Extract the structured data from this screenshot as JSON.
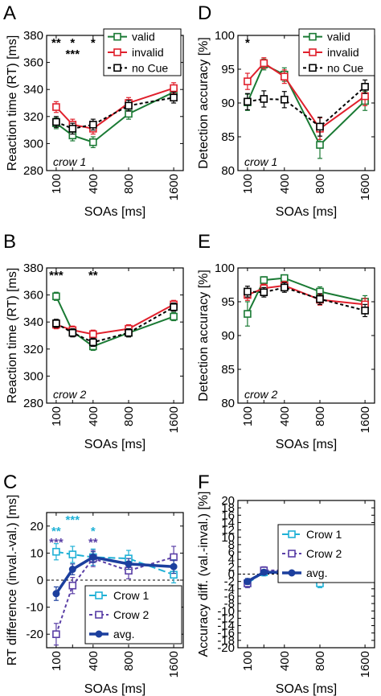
{
  "colors": {
    "valid": "#1a7a34",
    "invalid": "#e0202c",
    "nocue": "#000000",
    "crow1": "#1fb1d6",
    "crow2": "#5a3fa6",
    "avg": "#1c3f9e"
  },
  "chart_data": [
    {
      "id": "A",
      "panel_label": "A",
      "type": "line",
      "x": [
        100,
        200,
        400,
        800,
        1600
      ],
      "xticks": [
        "100",
        "400",
        "800",
        "1600"
      ],
      "xtick_values": [
        100,
        400,
        800,
        1600
      ],
      "xlabel": "SOAs [ms]",
      "ylabel": "Reaction time (RT) [ms]",
      "ylim": [
        280,
        380
      ],
      "yticks": [
        280,
        300,
        320,
        340,
        360,
        380
      ],
      "annotation": "crow 1",
      "stars": [
        {
          "x": 100,
          "row": 0,
          "text": "**",
          "color": "#000000"
        },
        {
          "x": 200,
          "row": 0,
          "text": "*",
          "color": "#000000"
        },
        {
          "x": 200,
          "row": 1,
          "text": "***",
          "color": "#000000"
        },
        {
          "x": 400,
          "row": 0,
          "text": "*",
          "color": "#000000"
        }
      ],
      "legend": {
        "position": "top-right",
        "entries": [
          "valid",
          "invalid",
          "no Cue"
        ]
      },
      "series": [
        {
          "name": "valid",
          "key": "valid",
          "dash": "solid",
          "values": [
            315,
            306,
            301,
            322,
            338
          ],
          "err": [
            4,
            4,
            4,
            4,
            4
          ]
        },
        {
          "name": "invalid",
          "key": "invalid",
          "dash": "solid",
          "values": [
            327,
            314,
            311,
            330,
            341
          ],
          "err": [
            4,
            4,
            4,
            4,
            4
          ]
        },
        {
          "name": "no Cue",
          "key": "nocue",
          "dash": "dash",
          "values": [
            316,
            311,
            314,
            328,
            334
          ],
          "err": [
            4,
            4,
            4,
            4,
            4
          ]
        }
      ]
    },
    {
      "id": "D",
      "panel_label": "D",
      "type": "line",
      "x": [
        100,
        200,
        400,
        800,
        1600
      ],
      "xticks": [
        "100",
        "400",
        "800",
        "1600"
      ],
      "xtick_values": [
        100,
        400,
        800,
        1600
      ],
      "xlabel": "SOAs [ms]",
      "ylabel": "Detection accuracy [%]",
      "ylim": [
        80,
        100
      ],
      "yticks": [
        80,
        85,
        90,
        95,
        100
      ],
      "annotation": "crow 1",
      "stars": [
        {
          "x": 100,
          "row": 0,
          "text": "*",
          "color": "#000000"
        }
      ],
      "legend": {
        "position": "top-right",
        "entries": [
          "valid",
          "invalid",
          "no Cue"
        ]
      },
      "series": [
        {
          "name": "valid",
          "key": "valid",
          "dash": "solid",
          "values": [
            90.1,
            95.7,
            94.2,
            83.8,
            90.3
          ],
          "err": [
            1.2,
            0.8,
            1.0,
            2.0,
            1.4
          ]
        },
        {
          "name": "invalid",
          "key": "invalid",
          "dash": "solid",
          "values": [
            93.2,
            95.9,
            93.9,
            86.2,
            91.0
          ],
          "err": [
            1.2,
            0.8,
            1.0,
            1.6,
            1.4
          ]
        },
        {
          "name": "no Cue",
          "key": "nocue",
          "dash": "dash",
          "values": [
            90.2,
            90.6,
            90.5,
            86.5,
            92.4
          ],
          "err": [
            1.2,
            1.2,
            1.2,
            1.4,
            1.0
          ]
        }
      ]
    },
    {
      "id": "B",
      "panel_label": "B",
      "type": "line",
      "x": [
        100,
        200,
        400,
        800,
        1600
      ],
      "xticks": [
        "100",
        "400",
        "800",
        "1600"
      ],
      "xtick_values": [
        100,
        400,
        800,
        1600
      ],
      "xlabel": "SOAs [ms]",
      "ylabel": "Reaction time (RT) [ms]",
      "ylim": [
        280,
        380
      ],
      "yticks": [
        280,
        300,
        320,
        340,
        360,
        380
      ],
      "annotation": "crow 2",
      "stars": [
        {
          "x": 100,
          "row": 0,
          "text": "***",
          "color": "#000000"
        },
        {
          "x": 400,
          "row": 0,
          "text": "**",
          "color": "#000000"
        }
      ],
      "legend": null,
      "series": [
        {
          "name": "valid",
          "key": "valid",
          "dash": "solid",
          "values": [
            359,
            333,
            322,
            332,
            344
          ],
          "err": [
            3,
            3,
            3,
            3,
            3
          ]
        },
        {
          "name": "invalid",
          "key": "invalid",
          "dash": "solid",
          "values": [
            338,
            334,
            331,
            335,
            353
          ],
          "err": [
            3,
            3,
            3,
            3,
            3
          ]
        },
        {
          "name": "no Cue",
          "key": "nocue",
          "dash": "dash",
          "values": [
            339,
            332,
            325,
            332,
            351
          ],
          "err": [
            3,
            3,
            3,
            3,
            3
          ]
        }
      ]
    },
    {
      "id": "E",
      "panel_label": "E",
      "type": "line",
      "x": [
        100,
        200,
        400,
        800,
        1600
      ],
      "xticks": [
        "100",
        "400",
        "800",
        "1600"
      ],
      "xtick_values": [
        100,
        400,
        800,
        1600
      ],
      "xlabel": "SOAs [ms]",
      "ylabel": "Detection accuracy [%]",
      "ylim": [
        80,
        100
      ],
      "yticks": [
        80,
        85,
        90,
        95,
        100
      ],
      "annotation": "crow 2",
      "stars": [],
      "legend": null,
      "series": [
        {
          "name": "valid",
          "key": "valid",
          "dash": "solid",
          "values": [
            93.2,
            98.2,
            98.5,
            96.5,
            95.0
          ],
          "err": [
            1.8,
            0.5,
            0.4,
            0.7,
            0.9
          ]
        },
        {
          "name": "invalid",
          "key": "invalid",
          "dash": "solid",
          "values": [
            96.0,
            97.0,
            97.4,
            95.3,
            94.6
          ],
          "err": [
            0.8,
            0.6,
            0.6,
            0.8,
            0.9
          ]
        },
        {
          "name": "no Cue",
          "key": "nocue",
          "dash": "dash",
          "values": [
            96.5,
            96.4,
            97.1,
            95.4,
            93.7
          ],
          "err": [
            0.8,
            0.7,
            0.7,
            0.8,
            0.9
          ]
        }
      ]
    },
    {
      "id": "C",
      "panel_label": "C",
      "type": "line",
      "x": [
        100,
        200,
        400,
        800,
        1600
      ],
      "xticks": [
        "100",
        "400",
        "800",
        "1600"
      ],
      "xtick_values": [
        100,
        400,
        800,
        1600
      ],
      "xlabel": "SOAs [ms]",
      "ylabel": "RT difference (inval.-val.) [ms]",
      "ylim": [
        -25,
        25
      ],
      "yticks": [
        -20,
        -10,
        0,
        10,
        20
      ],
      "zero_line": true,
      "annotation": "",
      "stars": [
        {
          "x": 100,
          "row": 1,
          "text": "**",
          "color": "#1fb1d6"
        },
        {
          "x": 200,
          "row": 0,
          "text": "***",
          "color": "#1fb1d6"
        },
        {
          "x": 400,
          "row": 1,
          "text": "*",
          "color": "#1fb1d6"
        },
        {
          "x": 100,
          "row": 2,
          "text": "***",
          "color": "#5a3fa6"
        },
        {
          "x": 400,
          "row": 2,
          "text": "**",
          "color": "#5a3fa6"
        }
      ],
      "legend": {
        "position": "bottom-right",
        "entries": [
          "Crow 1",
          "Crow 2",
          "avg."
        ]
      },
      "series": [
        {
          "name": "Crow 1",
          "key": "crow1",
          "dash": "longdash",
          "marker": "square",
          "values": [
            10.5,
            9.5,
            8.5,
            8.0,
            2.0
          ],
          "err": [
            3,
            3,
            3,
            3,
            3
          ]
        },
        {
          "name": "Crow 2",
          "key": "crow2",
          "dash": "dash",
          "marker": "square",
          "values": [
            -20,
            -2,
            8,
            3.5,
            8.5
          ],
          "err": [
            4,
            3,
            3,
            3,
            4
          ]
        },
        {
          "name": "avg.",
          "key": "avg",
          "dash": "solid",
          "marker": "dot",
          "width": 3.5,
          "values": [
            -5,
            4,
            8.5,
            6,
            5
          ],
          "err": [
            2.5,
            2,
            2,
            2,
            2.5
          ]
        }
      ]
    },
    {
      "id": "F",
      "panel_label": "F",
      "type": "line",
      "x": [
        100,
        200,
        400,
        800,
        1600
      ],
      "xticks": [
        "100",
        "400",
        "800",
        "1600"
      ],
      "xtick_values": [
        100,
        400,
        800,
        1600
      ],
      "xlabel": "SOAs [ms]",
      "ylabel": "Accuracy diff. (val.-inval.) [%]",
      "ylim": [
        -20,
        20
      ],
      "yticks": [
        -20,
        -18,
        -16,
        -14,
        -12,
        -10,
        -8,
        -6,
        -4,
        -2,
        0,
        2,
        4,
        6,
        8,
        10,
        12,
        14,
        16,
        18,
        20
      ],
      "zero_line": true,
      "annotation": "",
      "stars": [],
      "legend": {
        "position": "top-right",
        "entries": [
          "Crow 1",
          "Crow 2",
          "avg."
        ]
      },
      "series": [
        {
          "name": "Crow 1",
          "key": "crow1",
          "dash": "longdash",
          "marker": "square",
          "values": [
            -2.5,
            0.5,
            0.5,
            -2.5,
            -0.5
          ],
          "err": [
            1.2,
            1,
            1,
            1.2,
            1
          ]
        },
        {
          "name": "Crow 2",
          "key": "crow2",
          "dash": "dash",
          "marker": "square",
          "values": [
            -2.5,
            1.0,
            1.0,
            1.0,
            0.0
          ],
          "err": [
            1.2,
            1,
            1,
            1,
            1
          ]
        },
        {
          "name": "avg.",
          "key": "avg",
          "dash": "solid",
          "marker": "dot",
          "width": 3.5,
          "values": [
            -2.0,
            0.5,
            0.5,
            -0.5,
            -0.2
          ],
          "err": [
            0.8,
            0.7,
            0.7,
            0.7,
            0.7
          ]
        }
      ]
    }
  ]
}
